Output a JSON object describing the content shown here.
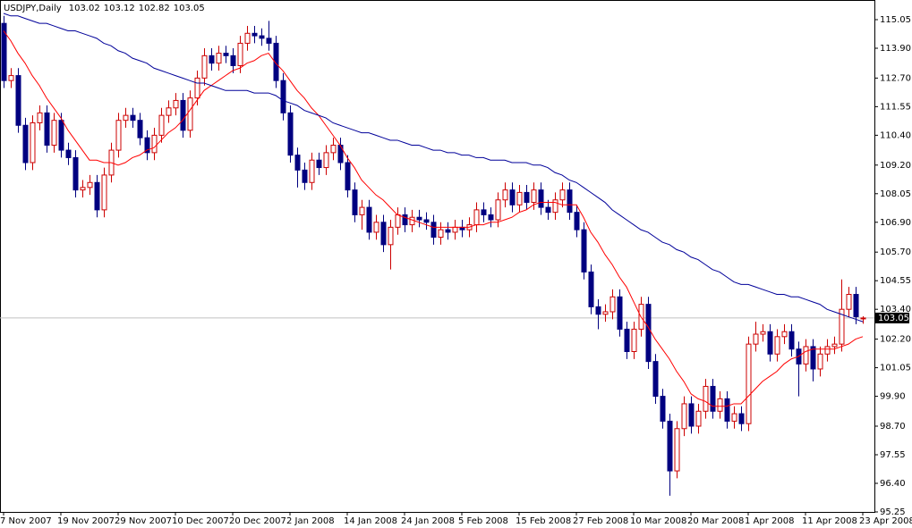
{
  "chart_data": {
    "type": "candlestick",
    "title": "USDJPY,Daily",
    "categories": [
      "7 Nov 2007",
      null,
      null,
      null,
      null,
      null,
      null,
      null,
      "19 Nov 2007",
      null,
      null,
      null,
      null,
      null,
      null,
      null,
      "29 Nov 2007",
      null,
      null,
      null,
      null,
      null,
      null,
      null,
      "10 Dec 2007",
      null,
      null,
      null,
      null,
      null,
      null,
      null,
      "20 Dec 2007",
      null,
      null,
      null,
      null,
      null,
      null,
      null,
      "2 Jan 2008",
      null,
      null,
      null,
      null,
      null,
      null,
      null,
      "14 Jan 2008",
      null,
      null,
      null,
      null,
      null,
      null,
      null,
      "24 Jan 2008",
      null,
      null,
      null,
      null,
      null,
      null,
      null,
      "5 Feb 2008",
      null,
      null,
      null,
      null,
      null,
      null,
      null,
      "15 Feb 2008",
      null,
      null,
      null,
      null,
      null,
      null,
      null,
      "27 Feb 2008",
      null,
      null,
      null,
      null,
      null,
      null,
      null,
      "10 Mar 2008",
      null,
      null,
      null,
      null,
      null,
      null,
      null,
      "20 Mar 2008",
      null,
      null,
      null,
      null,
      null,
      null,
      null,
      "1 Apr 2008",
      null,
      null,
      null,
      null,
      null,
      null,
      null,
      "11 Apr 2008",
      null,
      null,
      null,
      null,
      null,
      null,
      null,
      "23 Apr 2008"
    ],
    "open": [
      114.9,
      112.6,
      112.8,
      110.8,
      109.3,
      110.9,
      111.3,
      110.0,
      111.0,
      109.8,
      109.5,
      108.2,
      108.3,
      108.5,
      107.4,
      108.8,
      109.8,
      111.0,
      111.2,
      111.0,
      110.3,
      109.7,
      110.4,
      111.2,
      111.5,
      111.8,
      110.6,
      111.9,
      112.7,
      113.6,
      113.3,
      113.7,
      113.6,
      113.2,
      114.1,
      114.5,
      114.4,
      114.3,
      114.1,
      112.6,
      111.3,
      109.6,
      109.0,
      108.5,
      109.4,
      109.1,
      109.7,
      110.0,
      109.3,
      108.2,
      107.2,
      107.5,
      106.5,
      106.9,
      106.0,
      106.7,
      107.2,
      106.8,
      107.1,
      107.0,
      106.9,
      106.3,
      106.6,
      106.5,
      106.7,
      106.6,
      106.8,
      107.4,
      107.2,
      107.0,
      107.8,
      108.2,
      107.6,
      108.1,
      107.7,
      108.2,
      107.5,
      107.3,
      107.8,
      108.2,
      107.3,
      106.6,
      104.9,
      103.5,
      103.2,
      103.3,
      103.9,
      102.6,
      101.7,
      102.6,
      103.6,
      101.3,
      99.9,
      98.9,
      96.9,
      98.6,
      99.6,
      98.7,
      99.3,
      100.3,
      99.3,
      99.8,
      98.9,
      99.2,
      98.8,
      102.0,
      102.4,
      102.5,
      101.6,
      102.3,
      102.5,
      101.8,
      101.2,
      101.9,
      101.0,
      101.6,
      101.9,
      102.0,
      103.4,
      104.0,
      103.02
    ],
    "high": [
      115.2,
      113.1,
      113.1,
      111.1,
      111.2,
      111.6,
      111.6,
      111.3,
      111.3,
      110.1,
      109.8,
      108.6,
      108.8,
      108.8,
      109.1,
      110.1,
      111.3,
      111.5,
      111.5,
      111.3,
      110.6,
      110.7,
      111.5,
      111.8,
      112.1,
      112.1,
      112.2,
      113.0,
      113.9,
      113.9,
      114.0,
      114.0,
      113.9,
      114.4,
      114.8,
      114.8,
      114.7,
      115.0,
      114.4,
      112.9,
      111.6,
      109.9,
      109.3,
      109.7,
      109.7,
      110.0,
      110.3,
      110.3,
      109.6,
      108.5,
      107.8,
      107.8,
      107.2,
      107.2,
      107.0,
      107.5,
      107.5,
      107.4,
      107.4,
      107.3,
      107.2,
      106.9,
      106.9,
      107.0,
      107.0,
      107.1,
      107.7,
      107.7,
      107.5,
      108.1,
      108.5,
      108.5,
      108.4,
      108.4,
      108.5,
      108.5,
      107.8,
      108.1,
      108.5,
      108.5,
      107.6,
      106.9,
      105.2,
      103.8,
      103.6,
      104.2,
      104.2,
      102.9,
      102.9,
      103.9,
      103.9,
      101.6,
      100.2,
      99.2,
      98.9,
      99.9,
      99.9,
      99.6,
      100.6,
      100.6,
      100.1,
      100.1,
      99.5,
      99.5,
      102.3,
      102.9,
      102.8,
      102.8,
      102.6,
      102.8,
      102.8,
      102.1,
      102.2,
      102.2,
      101.9,
      102.2,
      102.3,
      104.6,
      104.3,
      104.3,
      103.12
    ],
    "low": [
      112.3,
      112.3,
      110.5,
      109.0,
      109.0,
      110.6,
      109.7,
      109.7,
      109.5,
      109.2,
      107.9,
      107.9,
      108.0,
      107.1,
      107.1,
      108.5,
      109.5,
      110.7,
      110.7,
      110.0,
      109.4,
      109.4,
      110.1,
      110.9,
      111.2,
      110.3,
      110.3,
      111.6,
      112.4,
      113.0,
      113.0,
      113.3,
      112.9,
      112.9,
      113.8,
      114.1,
      114.0,
      113.8,
      112.3,
      111.0,
      109.3,
      108.3,
      108.2,
      108.2,
      108.8,
      108.8,
      109.4,
      109.0,
      107.9,
      106.9,
      106.6,
      106.2,
      106.2,
      105.7,
      105.0,
      106.4,
      106.5,
      106.5,
      106.7,
      106.6,
      106.0,
      106.0,
      106.2,
      106.2,
      106.3,
      106.3,
      106.5,
      106.9,
      106.7,
      106.7,
      107.5,
      107.3,
      107.3,
      107.4,
      107.4,
      107.2,
      107.0,
      107.0,
      107.5,
      107.0,
      106.3,
      104.6,
      103.2,
      102.6,
      102.9,
      103.0,
      102.3,
      101.4,
      101.4,
      102.3,
      101.0,
      99.6,
      98.6,
      95.9,
      96.6,
      98.3,
      98.4,
      98.4,
      99.0,
      99.0,
      99.0,
      98.6,
      98.6,
      98.5,
      98.5,
      101.7,
      102.1,
      101.3,
      101.3,
      102.0,
      101.5,
      99.9,
      100.9,
      100.5,
      100.7,
      101.3,
      101.6,
      101.7,
      103.1,
      102.8,
      102.82
    ],
    "close": [
      112.6,
      112.8,
      110.8,
      109.3,
      110.9,
      111.3,
      110.0,
      111.0,
      109.8,
      109.5,
      108.2,
      108.3,
      108.5,
      107.4,
      108.8,
      109.8,
      111.0,
      111.2,
      111.0,
      110.3,
      109.7,
      110.4,
      111.2,
      111.5,
      111.8,
      110.6,
      111.9,
      112.7,
      113.6,
      113.3,
      113.7,
      113.6,
      113.2,
      114.1,
      114.5,
      114.4,
      114.3,
      114.1,
      112.6,
      111.3,
      109.6,
      109.0,
      108.5,
      109.4,
      109.1,
      109.7,
      110.0,
      109.3,
      108.2,
      107.2,
      107.5,
      106.5,
      106.9,
      106.0,
      106.7,
      107.2,
      106.8,
      107.1,
      107.0,
      106.9,
      106.3,
      106.6,
      106.5,
      106.7,
      106.6,
      106.8,
      107.4,
      107.2,
      107.0,
      107.8,
      108.2,
      107.6,
      108.1,
      107.7,
      108.2,
      107.5,
      107.3,
      107.8,
      108.2,
      107.3,
      106.6,
      104.9,
      103.5,
      103.2,
      103.3,
      103.9,
      102.6,
      101.7,
      102.6,
      103.6,
      101.3,
      99.9,
      98.9,
      96.9,
      98.6,
      99.6,
      98.7,
      99.3,
      100.3,
      99.3,
      99.8,
      98.9,
      99.2,
      98.8,
      102.0,
      102.4,
      102.5,
      101.6,
      102.3,
      102.5,
      101.8,
      101.2,
      101.9,
      101.0,
      101.6,
      101.9,
      102.0,
      103.4,
      104.0,
      103.1,
      103.05
    ],
    "up_color": "#cc0000",
    "down_color": "#000080",
    "moving_averages": [
      {
        "type": "line",
        "color": "#ff0000",
        "values": [
          114.6,
          114.2,
          113.7,
          113.3,
          112.8,
          112.4,
          111.9,
          111.5,
          111.1,
          110.6,
          110.2,
          109.8,
          109.4,
          109.4,
          109.3,
          109.3,
          109.2,
          109.3,
          109.5,
          109.6,
          109.8,
          109.9,
          110.2,
          110.5,
          110.7,
          111.0,
          111.4,
          111.8,
          112.2,
          112.4,
          112.6,
          112.8,
          113.0,
          113.1,
          113.3,
          113.4,
          113.6,
          113.7,
          113.3,
          113.0,
          112.6,
          112.2,
          111.9,
          111.5,
          111.2,
          110.8,
          110.4,
          110.0,
          109.5,
          109.1,
          108.6,
          108.3,
          108.0,
          107.8,
          107.5,
          107.2,
          107.1,
          107.0,
          106.9,
          106.8,
          106.7,
          106.7,
          106.7,
          106.7,
          106.7,
          106.7,
          106.8,
          106.8,
          106.9,
          106.9,
          107.0,
          107.1,
          107.3,
          107.4,
          107.6,
          107.7,
          107.7,
          107.7,
          107.6,
          107.6,
          107.6,
          107.1,
          106.5,
          106.1,
          105.6,
          105.2,
          104.7,
          104.3,
          103.7,
          103.1,
          102.7,
          102.2,
          101.8,
          101.4,
          100.9,
          100.5,
          100.0,
          99.8,
          99.7,
          99.5,
          99.5,
          99.5,
          99.6,
          99.6,
          99.9,
          100.2,
          100.5,
          100.7,
          100.9,
          101.2,
          101.4,
          101.5,
          101.7,
          101.8,
          101.8,
          101.8,
          101.8,
          101.9,
          102.0,
          102.2,
          102.3
        ]
      },
      {
        "type": "line",
        "color": "#000099",
        "values": [
          115.3,
          115.2,
          115.2,
          115.1,
          115.0,
          114.9,
          114.9,
          114.8,
          114.7,
          114.6,
          114.6,
          114.5,
          114.4,
          114.3,
          114.1,
          114.0,
          113.8,
          113.7,
          113.5,
          113.4,
          113.3,
          113.1,
          113.0,
          112.9,
          112.8,
          112.7,
          112.6,
          112.5,
          112.5,
          112.4,
          112.3,
          112.2,
          112.2,
          112.2,
          112.2,
          112.1,
          112.1,
          112.1,
          112.0,
          111.8,
          111.7,
          111.6,
          111.4,
          111.3,
          111.2,
          111.1,
          110.9,
          110.8,
          110.7,
          110.6,
          110.5,
          110.5,
          110.4,
          110.3,
          110.2,
          110.2,
          110.1,
          110.0,
          110.0,
          109.9,
          109.8,
          109.8,
          109.7,
          109.7,
          109.6,
          109.6,
          109.5,
          109.5,
          109.4,
          109.4,
          109.4,
          109.3,
          109.3,
          109.3,
          109.2,
          109.2,
          109.1,
          108.9,
          108.8,
          108.6,
          108.5,
          108.3,
          108.1,
          107.9,
          107.7,
          107.4,
          107.2,
          107.0,
          106.8,
          106.6,
          106.5,
          106.3,
          106.1,
          106.0,
          105.8,
          105.7,
          105.5,
          105.4,
          105.2,
          105.0,
          104.9,
          104.7,
          104.5,
          104.4,
          104.4,
          104.3,
          104.2,
          104.1,
          104.0,
          104.0,
          103.9,
          103.9,
          103.8,
          103.7,
          103.6,
          103.4,
          103.3,
          103.2,
          103.1,
          103.0,
          102.9
        ]
      }
    ],
    "price_line_color": "#c0c0c0",
    "ylim": [
      95.25,
      115.84
    ],
    "yticks": [
      115.05,
      {
        "value": 113.9,
        "label": "113.90"
      },
      {
        "value": 112.7,
        "label": "112.70"
      },
      111.55,
      {
        "value": 110.4,
        "label": "110.40"
      },
      {
        "value": 109.2,
        "label": "109.20"
      },
      108.05,
      {
        "value": 106.9,
        "label": "106.90"
      },
      {
        "value": 105.7,
        "label": "105.70"
      },
      104.55,
      {
        "value": 103.4,
        "label": "103.40"
      },
      {
        "value": 102.2,
        "label": "102.20"
      },
      101.05,
      {
        "value": 99.9,
        "label": "99.90"
      },
      {
        "value": 98.7,
        "label": "98.70"
      },
      97.55,
      {
        "value": 96.4,
        "label": "96.40"
      },
      95.25
    ],
    "grid": false
  }
}
